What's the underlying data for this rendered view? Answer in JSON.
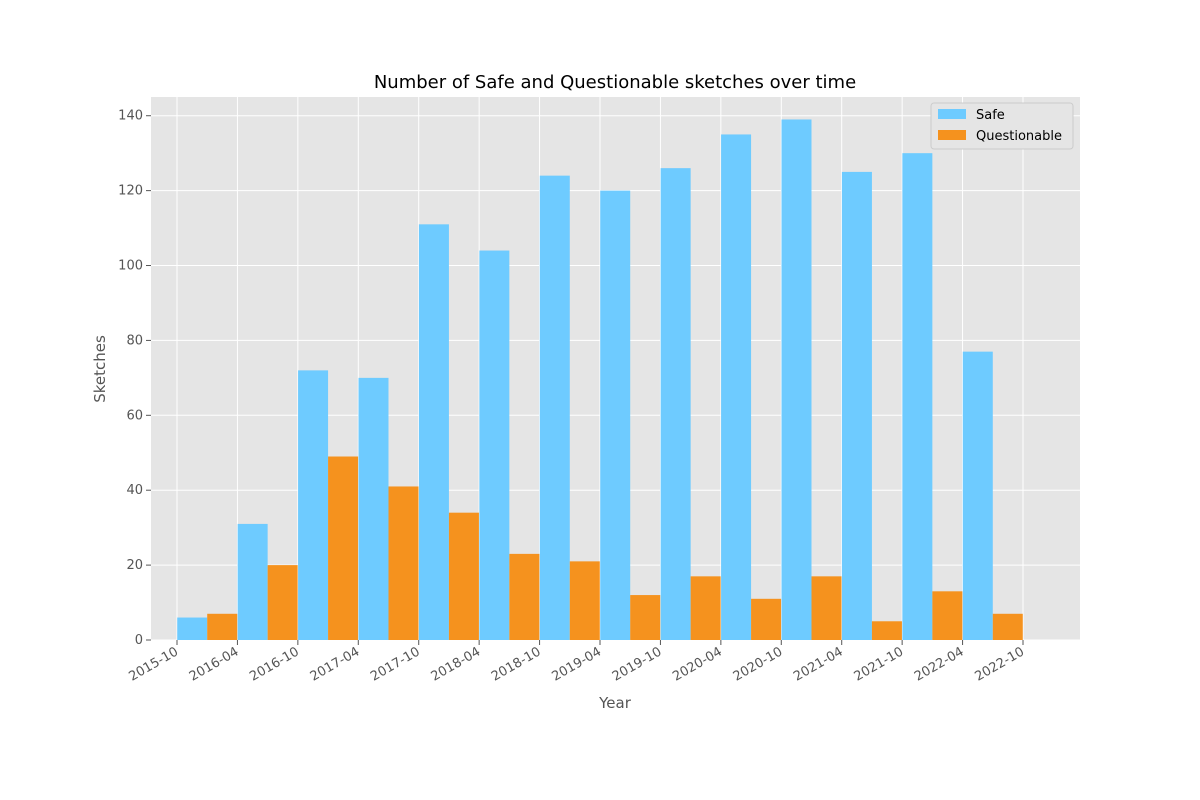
{
  "chart_data": {
    "type": "bar",
    "title": "Number of Safe and Questionable sketches over time",
    "xlabel": "Year",
    "ylabel": "Sketches",
    "ylim": [
      0,
      145
    ],
    "yticks": [
      "0",
      "20",
      "40",
      "60",
      "80",
      "100",
      "120",
      "140"
    ],
    "xticks": [
      "2015-10",
      "2016-04",
      "2016-10",
      "2017-04",
      "2017-10",
      "2018-04",
      "2018-10",
      "2019-04",
      "2019-10",
      "2020-04",
      "2020-10",
      "2021-04",
      "2021-10",
      "2022-04",
      "2022-10"
    ],
    "categories": [
      "2016-01",
      "2016-07",
      "2017-01",
      "2017-07",
      "2018-01",
      "2018-07",
      "2019-01",
      "2019-07",
      "2020-01",
      "2020-07",
      "2021-01",
      "2021-07",
      "2022-01",
      "2022-07"
    ],
    "series": [
      {
        "name": "Safe",
        "color": "#6ecbff",
        "values": [
          6,
          31,
          72,
          70,
          111,
          104,
          124,
          120,
          126,
          135,
          139,
          125,
          130,
          77
        ]
      },
      {
        "name": "Questionable",
        "color": "#f5921e",
        "values": [
          7,
          20,
          49,
          41,
          34,
          23,
          21,
          12,
          17,
          11,
          17,
          5,
          13,
          7
        ]
      }
    ],
    "grid": true,
    "legend_position": "top-right"
  }
}
